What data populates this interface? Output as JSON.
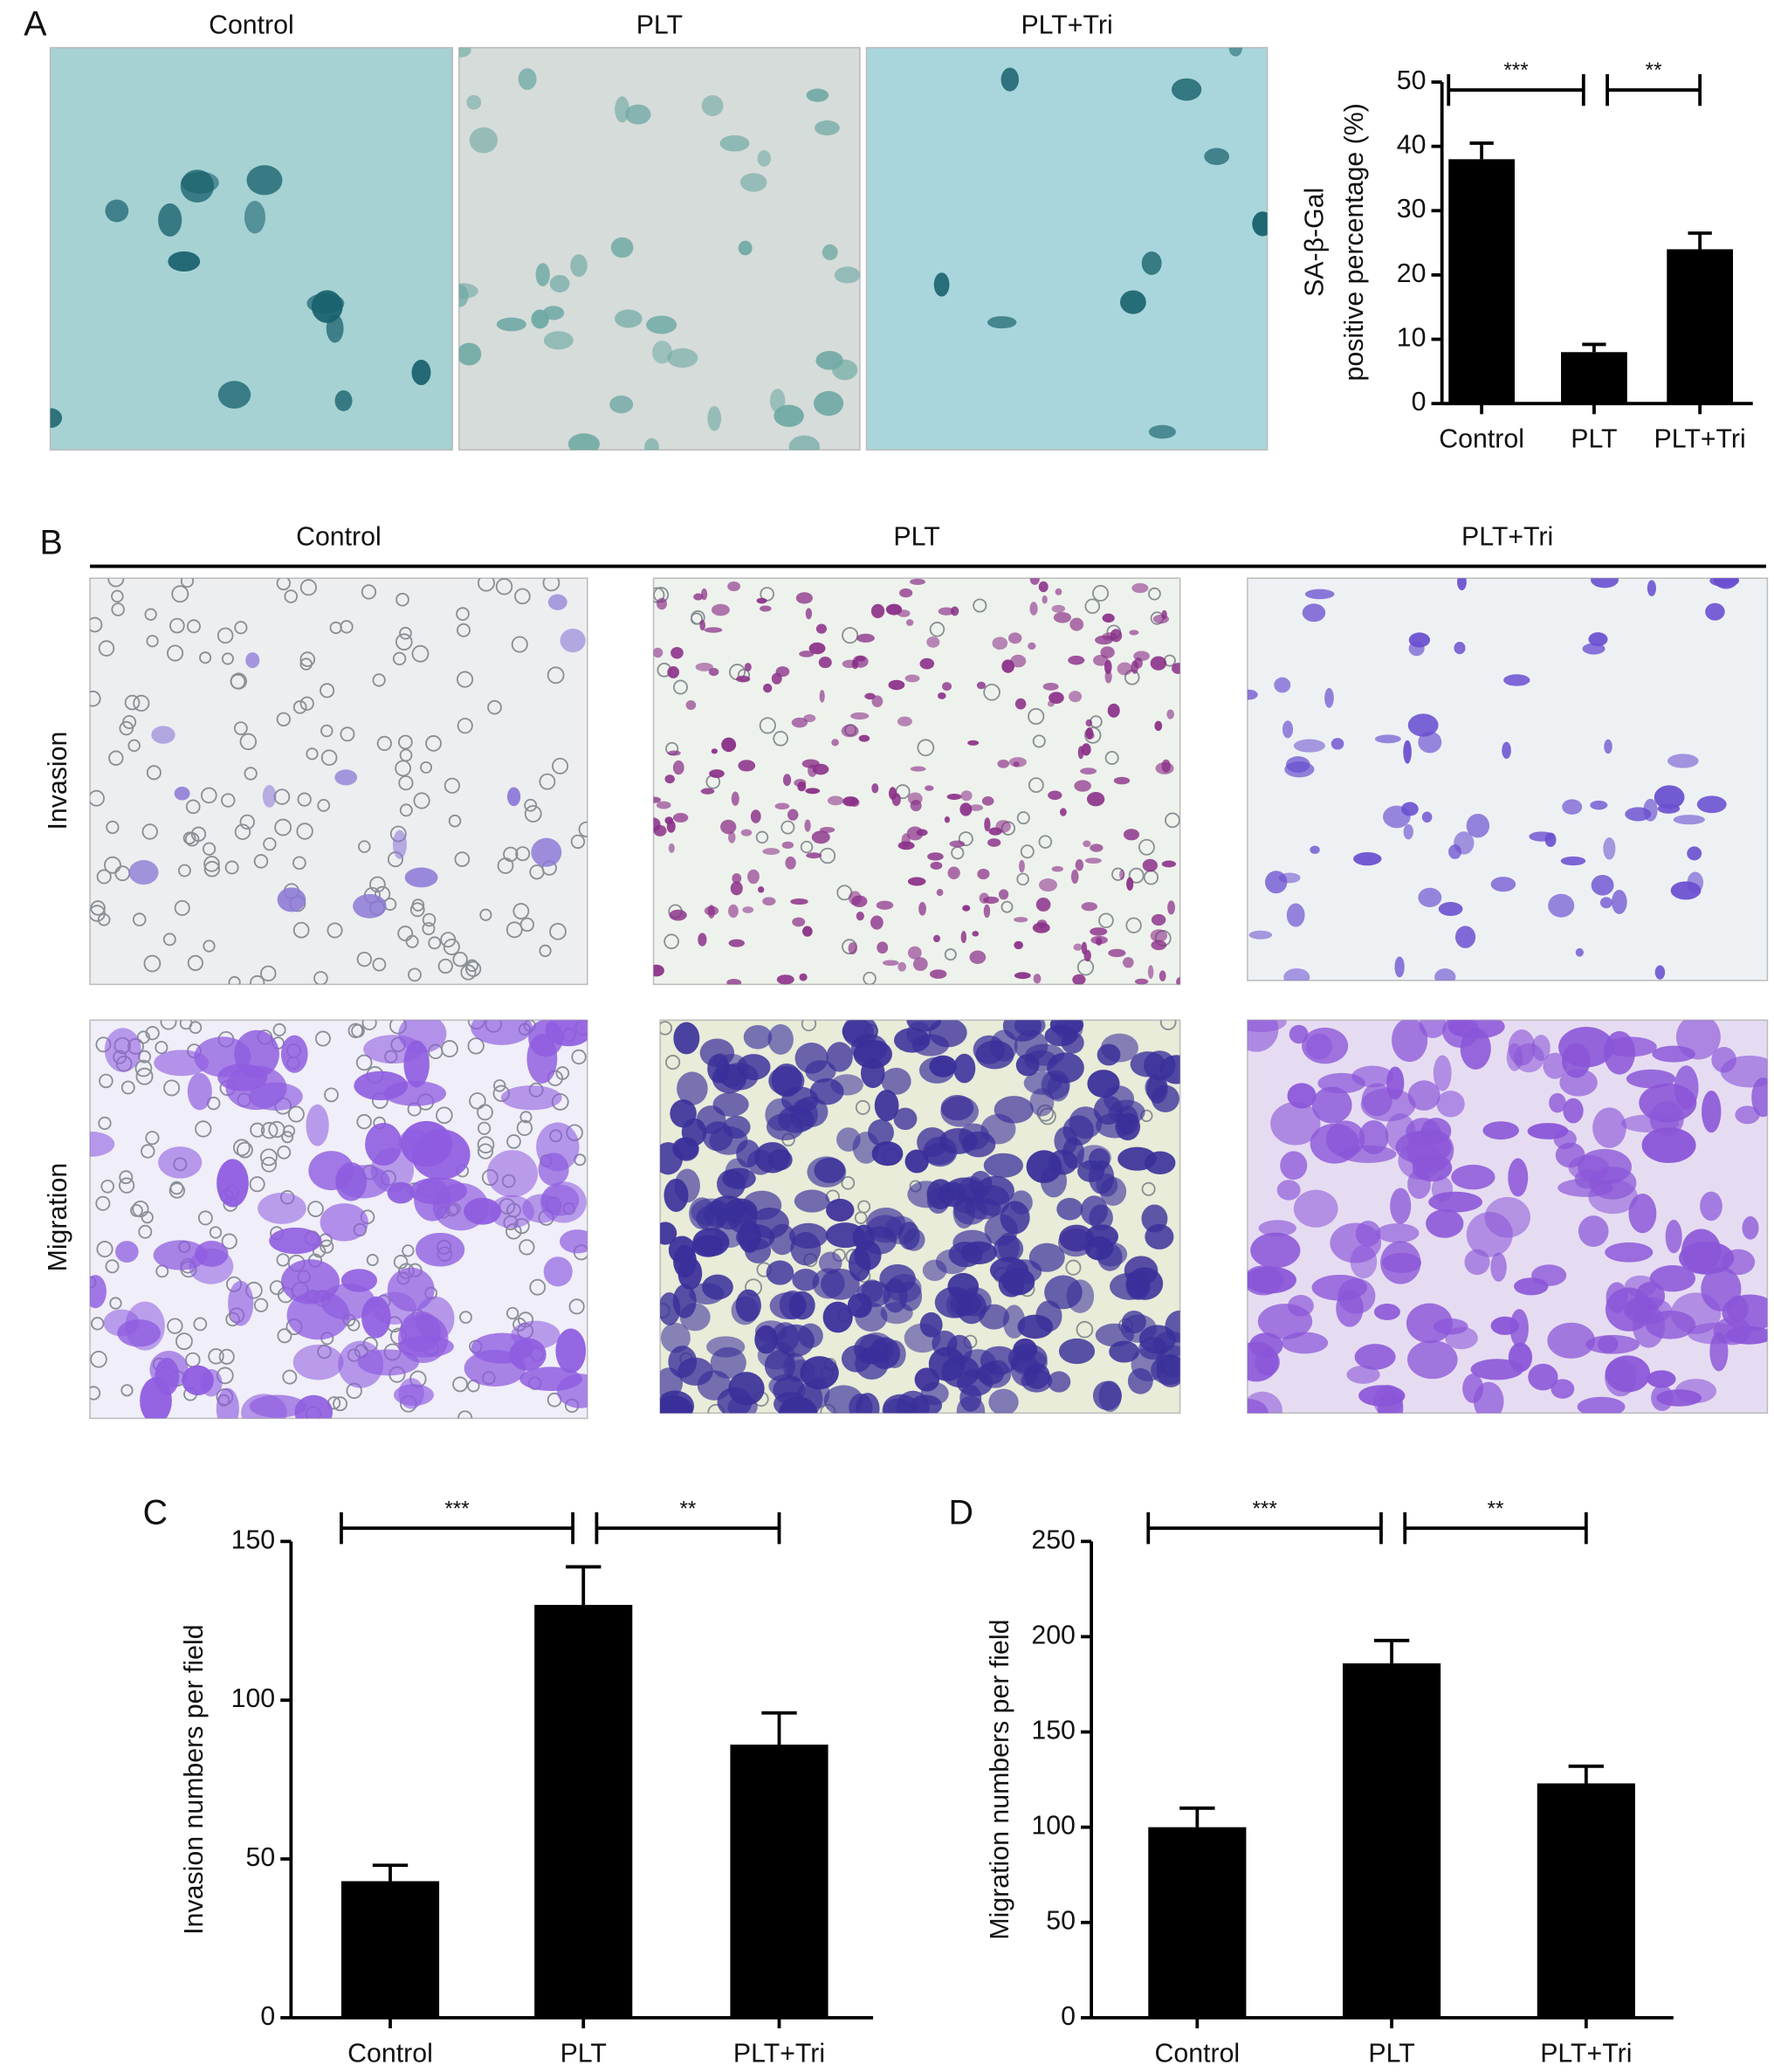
{
  "panel_labels": [
    "A",
    "B",
    "C",
    "D"
  ],
  "panel_a_images": {
    "labels": [
      "Control",
      "PLT",
      "PLT+Tri"
    ]
  },
  "panel_b_images": {
    "columns": [
      "Control",
      "PLT",
      "PLT+Tri"
    ],
    "rows": [
      "Invasion",
      "Migration"
    ]
  },
  "chart_data": [
    {
      "type": "bar",
      "ylabel": [
        "SA-β-Gal",
        "positive percentage (%)"
      ],
      "categories": [
        "Control",
        "PLT",
        "PLT+Tri"
      ],
      "values": [
        38,
        8,
        24
      ],
      "errors": [
        2.5,
        1.2,
        2.5
      ],
      "color": "#000000",
      "ylim": [
        0,
        50
      ],
      "yticks": [
        0,
        10,
        20,
        30,
        40,
        50
      ],
      "annotations": [
        {
          "text": "***",
          "between": [
            0,
            1
          ]
        },
        {
          "text": "**",
          "between": [
            1,
            2
          ]
        }
      ]
    },
    {
      "type": "bar",
      "ylabel": [
        "Invasion numbers per field"
      ],
      "categories": [
        "Control",
        "PLT",
        "PLT+Tri"
      ],
      "values": [
        43,
        130,
        86
      ],
      "errors": [
        5,
        12,
        10
      ],
      "color": "#000000",
      "ylim": [
        0,
        150
      ],
      "yticks": [
        0,
        50,
        100,
        150
      ],
      "annotations": [
        {
          "text": "***",
          "between": [
            0,
            1
          ]
        },
        {
          "text": "**",
          "between": [
            1,
            2
          ]
        }
      ]
    },
    {
      "type": "bar",
      "ylabel": [
        "Migration numbers per field"
      ],
      "categories": [
        "Control",
        "PLT",
        "PLT+Tri"
      ],
      "values": [
        100,
        186,
        123
      ],
      "errors": [
        10,
        12,
        9
      ],
      "color": "#000000",
      "ylim": [
        0,
        250
      ],
      "yticks": [
        0,
        50,
        100,
        150,
        200,
        250
      ],
      "annotations": [
        {
          "text": "***",
          "between": [
            0,
            1
          ]
        },
        {
          "text": "**",
          "between": [
            1,
            2
          ]
        }
      ]
    }
  ]
}
